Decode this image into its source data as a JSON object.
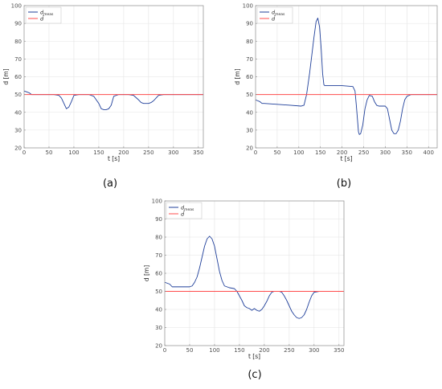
{
  "colors": {
    "measured": "#1f3f9a",
    "reference": "#ff4c4c",
    "grid": "#e4e4e4",
    "axis": "#8a8a8a"
  },
  "chart_data": [
    {
      "type": "line",
      "caption": "(a)",
      "xlabel": "t [s]",
      "ylabel": "d [m]",
      "xlim": [
        0,
        360
      ],
      "ylim": [
        20,
        100
      ],
      "xticks": [
        0,
        50,
        100,
        150,
        200,
        250,
        300,
        350
      ],
      "yticks": [
        20,
        30,
        40,
        50,
        60,
        70,
        80,
        90,
        100
      ],
      "grid": true,
      "legend_position": "top-left",
      "series": [
        {
          "name": "d_meas",
          "legend": {
            "main": "d",
            "sub": "meas"
          },
          "color": "measured",
          "x": [
            0,
            5,
            10,
            15,
            20,
            60,
            70,
            75,
            80,
            85,
            90,
            95,
            100,
            110,
            120,
            130,
            140,
            150,
            155,
            160,
            165,
            170,
            175,
            180,
            190,
            200,
            210,
            220,
            230,
            235,
            240,
            245,
            250,
            255,
            260,
            265,
            270,
            280,
            290,
            300,
            360
          ],
          "y": [
            52,
            51.5,
            51,
            50,
            50,
            50,
            49.5,
            48,
            45,
            42,
            43,
            46,
            49.5,
            50,
            50,
            50,
            49,
            45,
            42,
            41.5,
            41.5,
            42,
            44,
            49,
            50,
            50,
            50,
            49.5,
            47,
            45.5,
            45,
            45,
            45,
            45.5,
            46.5,
            48,
            49.5,
            50,
            50,
            50,
            50
          ]
        },
        {
          "name": "d_bar",
          "legend": {
            "main": "d̄",
            "sub": ""
          },
          "color": "reference",
          "x": [
            0,
            360
          ],
          "y": [
            50,
            50
          ]
        }
      ]
    },
    {
      "type": "line",
      "caption": "(b)",
      "xlabel": "t [s]",
      "ylabel": "d [m]",
      "xlim": [
        0,
        420
      ],
      "ylim": [
        20,
        100
      ],
      "xticks": [
        0,
        50,
        100,
        150,
        200,
        250,
        300,
        350,
        400
      ],
      "yticks": [
        20,
        30,
        40,
        50,
        60,
        70,
        80,
        90,
        100
      ],
      "grid": true,
      "legend_position": "top-left",
      "series": [
        {
          "name": "d_meas",
          "legend": {
            "main": "d",
            "sub": "meas"
          },
          "color": "measured",
          "x": [
            0,
            5,
            10,
            15,
            20,
            50,
            80,
            105,
            112,
            118,
            125,
            130,
            135,
            140,
            144,
            148,
            152,
            155,
            158,
            160,
            170,
            200,
            225,
            230,
            233,
            236,
            238,
            240,
            243,
            248,
            253,
            258,
            263,
            270,
            275,
            280,
            285,
            300,
            305,
            310,
            315,
            320,
            325,
            330,
            335,
            340,
            345,
            350,
            355,
            360,
            370,
            420
          ],
          "y": [
            47,
            46.5,
            46,
            45,
            45,
            44.5,
            44,
            43.5,
            44,
            50,
            62,
            72,
            82,
            91,
            93,
            88,
            75,
            62,
            55.5,
            55,
            55,
            55,
            54.5,
            52,
            44,
            35,
            29,
            27.5,
            28,
            33,
            42,
            47,
            49.5,
            49,
            46,
            44,
            43.5,
            43.5,
            42,
            36,
            30,
            28,
            28,
            30,
            35,
            42,
            47,
            49,
            49.5,
            50,
            50,
            50
          ]
        },
        {
          "name": "d_bar",
          "legend": {
            "main": "d̄",
            "sub": ""
          },
          "color": "reference",
          "x": [
            0,
            420
          ],
          "y": [
            50,
            50
          ]
        }
      ]
    },
    {
      "type": "line",
      "caption": "(c)",
      "xlabel": "t [s]",
      "ylabel": "d [m]",
      "xlim": [
        0,
        360
      ],
      "ylim": [
        20,
        100
      ],
      "xticks": [
        0,
        50,
        100,
        150,
        200,
        250,
        300,
        350
      ],
      "yticks": [
        20,
        30,
        40,
        50,
        60,
        70,
        80,
        90,
        100
      ],
      "grid": true,
      "legend_position": "top-left",
      "series": [
        {
          "name": "d_meas",
          "legend": {
            "main": "d",
            "sub": "meas"
          },
          "color": "measured",
          "x": [
            0,
            5,
            10,
            15,
            50,
            55,
            60,
            65,
            70,
            75,
            80,
            85,
            90,
            95,
            100,
            105,
            110,
            115,
            120,
            130,
            140,
            145,
            150,
            155,
            160,
            165,
            170,
            175,
            180,
            185,
            190,
            195,
            200,
            205,
            210,
            215,
            220,
            230,
            235,
            240,
            245,
            250,
            255,
            260,
            265,
            270,
            275,
            280,
            285,
            290,
            295,
            300,
            310,
            360
          ],
          "y": [
            55,
            54.5,
            54,
            52.5,
            52.5,
            53,
            55,
            58,
            63,
            69,
            75,
            79,
            80.5,
            79,
            75,
            68,
            61,
            56,
            53,
            52,
            51.5,
            50,
            47.5,
            45,
            42,
            41,
            40.5,
            39.5,
            40.5,
            39.5,
            39,
            40,
            42,
            44.5,
            47.5,
            49.5,
            50,
            50,
            49.5,
            47.5,
            45,
            42,
            39,
            37,
            35.5,
            35,
            35.5,
            37,
            40,
            44,
            47.5,
            49.5,
            50,
            50
          ]
        },
        {
          "name": "d_bar",
          "legend": {
            "main": "d̄",
            "sub": ""
          },
          "color": "reference",
          "x": [
            0,
            360
          ],
          "y": [
            50,
            50
          ]
        }
      ]
    }
  ]
}
